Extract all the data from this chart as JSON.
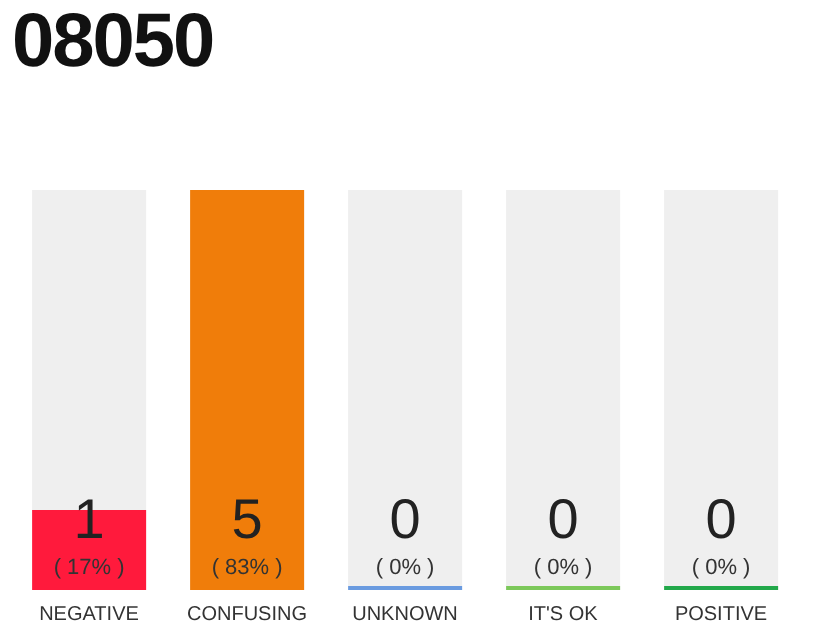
{
  "chart_data": {
    "type": "bar",
    "title": "08050",
    "categories": [
      "NEGATIVE",
      "CONFUSING",
      "UNKNOWN",
      "IT'S OK",
      "POSITIVE"
    ],
    "values": [
      1,
      5,
      0,
      0,
      0
    ],
    "colors": [
      "#ff1a3c",
      "#f07d0a",
      "#6a9be0",
      "#7cc85a",
      "#22a84a"
    ],
    "tick_labels": "x",
    "data_labels": true,
    "annotations": [
      "( 17% )",
      "( 83% )",
      "( 0% )",
      "( 0% )",
      "( 0% )"
    ]
  }
}
